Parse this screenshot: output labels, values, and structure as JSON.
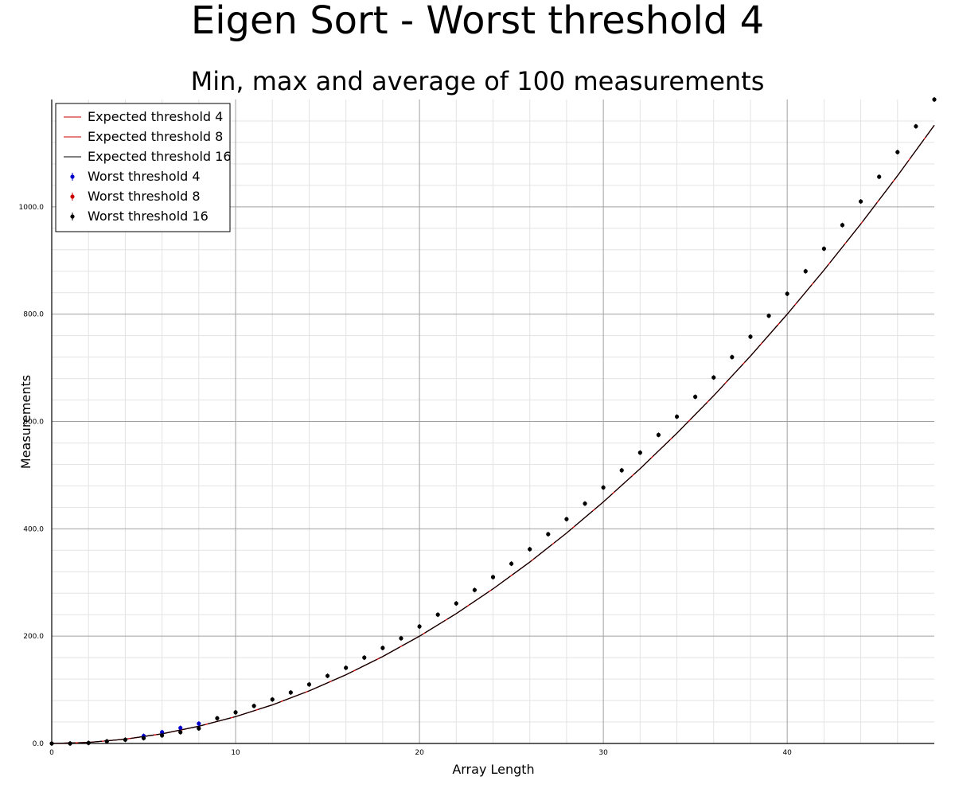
{
  "chart_data": {
    "type": "scatter",
    "title": "Eigen Sort - Worst threshold 4",
    "subtitle": "Min, max and average of 100 measurements",
    "xlabel": "Array Length",
    "ylabel": "Measurements",
    "xlim": [
      0,
      48
    ],
    "ylim": [
      0,
      1200
    ],
    "x_ticks": [
      "0",
      "10",
      "20",
      "30",
      "40"
    ],
    "y_ticks": [
      "0.0",
      "200.0",
      "400.0",
      "600.0",
      "800.0",
      "1000.0"
    ],
    "grid": true,
    "legend_position": "top-left",
    "lines": [
      {
        "name": "Expected threshold 4",
        "color": "#cc0000",
        "x": [
          0,
          2,
          4,
          6,
          8,
          10,
          12,
          14,
          16,
          18,
          20,
          22,
          24,
          26,
          28,
          30,
          32,
          34,
          36,
          38,
          40,
          42,
          44,
          46,
          48
        ],
        "y": [
          0,
          2,
          8,
          18,
          32,
          50,
          72,
          98,
          128,
          162,
          200,
          242,
          288,
          338,
          392,
          450,
          512,
          578,
          648,
          722,
          800,
          882,
          968,
          1058,
          1152
        ]
      },
      {
        "name": "Expected threshold 8",
        "color": "#cc0000",
        "x": [
          0,
          2,
          4,
          6,
          8,
          10,
          12,
          14,
          16,
          18,
          20,
          22,
          24,
          26,
          28,
          30,
          32,
          34,
          36,
          38,
          40,
          42,
          44,
          46,
          48
        ],
        "y": [
          0,
          2,
          8,
          18,
          32,
          50,
          72,
          98,
          128,
          162,
          200,
          242,
          288,
          338,
          392,
          450,
          512,
          578,
          648,
          722,
          800,
          882,
          968,
          1058,
          1152
        ]
      },
      {
        "name": "Expected threshold 16",
        "color": "#000000",
        "x": [
          0,
          2,
          4,
          6,
          8,
          10,
          12,
          14,
          16,
          18,
          20,
          22,
          24,
          26,
          28,
          30,
          32,
          34,
          36,
          38,
          40,
          42,
          44,
          46,
          48
        ],
        "y": [
          0,
          2,
          8,
          18,
          32,
          50,
          72,
          98,
          128,
          162,
          200,
          242,
          288,
          338,
          392,
          450,
          512,
          578,
          648,
          722,
          800,
          882,
          968,
          1058,
          1152
        ]
      }
    ],
    "series": [
      {
        "name": "Worst threshold 4",
        "color": "#0000cc",
        "x": [
          5,
          6,
          7,
          8
        ],
        "y": [
          14,
          21,
          29,
          37
        ]
      },
      {
        "name": "Worst threshold 8",
        "color": "#cc0000",
        "x": [],
        "y": []
      },
      {
        "name": "Worst threshold 16",
        "color": "#000000",
        "x": [
          0,
          1,
          2,
          3,
          4,
          5,
          6,
          7,
          8,
          9,
          10,
          11,
          12,
          13,
          14,
          15,
          16,
          17,
          18,
          19,
          20,
          21,
          22,
          23,
          24,
          25,
          26,
          27,
          28,
          29,
          30,
          31,
          32,
          33,
          34,
          35,
          36,
          37,
          38,
          39,
          40,
          41,
          42,
          43,
          44,
          45,
          46,
          47,
          48
        ],
        "y": [
          0,
          0,
          1,
          4,
          7,
          10,
          15,
          21,
          28,
          47,
          58,
          70,
          82,
          95,
          110,
          126,
          141,
          160,
          178,
          196,
          218,
          240,
          261,
          286,
          310,
          335,
          362,
          390,
          418,
          447,
          477,
          509,
          542,
          575,
          609,
          646,
          682,
          720,
          758,
          797,
          838,
          880,
          922,
          966,
          1010,
          1056,
          1102,
          1150,
          1200
        ]
      }
    ]
  }
}
